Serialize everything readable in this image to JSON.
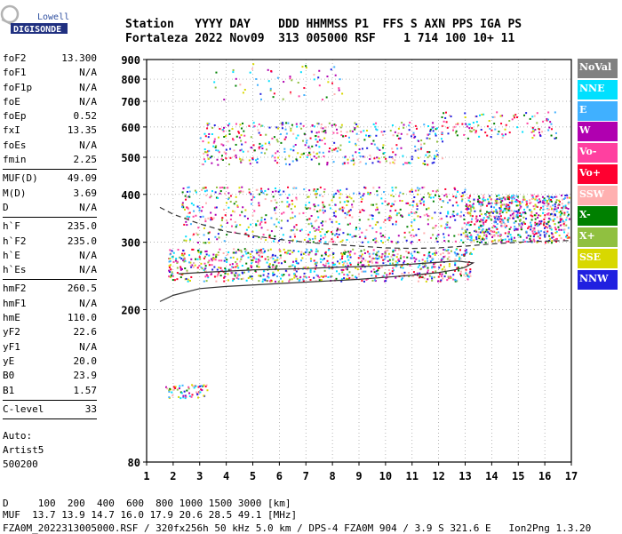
{
  "logo": {
    "line1": "Lowell",
    "line2": "DIGISONDE"
  },
  "header": {
    "row1": "Station   YYYY DAY    DDD HHMMSS P1  FFS S AXN PPS IGA PS",
    "row2": "Fortaleza 2022 Nov09  313 005000 RSF    1 714 100 10+ 11"
  },
  "params_group1": [
    {
      "name": "foF2",
      "value": "13.300"
    },
    {
      "name": "foF1",
      "value": "N/A"
    },
    {
      "name": "foF1p",
      "value": "N/A"
    },
    {
      "name": "foE",
      "value": "N/A"
    },
    {
      "name": "foEp",
      "value": "0.52"
    },
    {
      "name": "fxI",
      "value": "13.35"
    },
    {
      "name": "foEs",
      "value": "N/A"
    },
    {
      "name": "fmin",
      "value": "2.25"
    }
  ],
  "params_group2": [
    {
      "name": "MUF(D)",
      "value": "49.09"
    },
    {
      "name": "M(D)",
      "value": "3.69"
    },
    {
      "name": "D",
      "value": "N/A"
    }
  ],
  "params_group3": [
    {
      "name": "h`F",
      "value": "235.0"
    },
    {
      "name": "h`F2",
      "value": "235.0"
    },
    {
      "name": "h`E",
      "value": "N/A"
    },
    {
      "name": "h`Es",
      "value": "N/A"
    }
  ],
  "params_group4": [
    {
      "name": "hmF2",
      "value": "260.5"
    },
    {
      "name": "hmF1",
      "value": "N/A"
    },
    {
      "name": "hmE",
      "value": "110.0"
    },
    {
      "name": "yF2",
      "value": "22.6"
    },
    {
      "name": "yF1",
      "value": "N/A"
    },
    {
      "name": "yE",
      "value": "20.0"
    },
    {
      "name": "B0",
      "value": "23.9"
    },
    {
      "name": "B1",
      "value": "1.57"
    }
  ],
  "params_group5": [
    {
      "name": "C-level",
      "value": "33"
    }
  ],
  "notes": {
    "line1": "Auto:",
    "line2": "Artist5",
    "line3": "500200"
  },
  "legend": [
    {
      "label": "NoVal",
      "color": "#808080"
    },
    {
      "label": "NNE",
      "color": "#00e0ff"
    },
    {
      "label": "E",
      "color": "#40b0ff"
    },
    {
      "label": "W",
      "color": "#b000b0"
    },
    {
      "label": "Vo-",
      "color": "#ff40a0"
    },
    {
      "label": "Vo+",
      "color": "#ff0030"
    },
    {
      "label": "SSW",
      "color": "#ffb0b0"
    },
    {
      "label": "X-",
      "color": "#008000"
    },
    {
      "label": "X+",
      "color": "#90c040"
    },
    {
      "label": "SSE",
      "color": "#d8d800"
    },
    {
      "label": "NNW",
      "color": "#2020e0"
    }
  ],
  "bottom": {
    "row1": "D     100  200  400  600  800 1000 1500 3000 [km]",
    "row2": "MUF  13.7 13.9 14.7 16.0 17.9 20.6 28.5 49.1 [MHz]",
    "row3": "FZA0M_2022313005000.RSF / 320fx256h 50 kHz 5.0 km / DPS-4 FZA0M 904 / 3.9 S 321.6 E   Ion2Png 1.3.20"
  },
  "chart_data": {
    "type": "scatter",
    "xlabel": "",
    "ylabel": "",
    "xlim": [
      1,
      17
    ],
    "ylim": [
      80,
      900
    ],
    "y_scale": "log",
    "grid": true,
    "x_ticks": [
      1,
      2,
      3,
      4,
      5,
      6,
      7,
      8,
      9,
      10,
      11,
      12,
      13,
      14,
      15,
      16,
      17
    ],
    "y_ticks": [
      80,
      200,
      300,
      400,
      500,
      600,
      700,
      800,
      900
    ],
    "traces": [
      {
        "name": "O-trace profile",
        "style": "solid",
        "x": [
          1.5,
          2.0,
          3.0,
          4.0,
          5.0,
          6.0,
          7.0,
          8.0,
          9.0,
          10.0,
          11.0,
          12.0,
          12.6,
          13.0,
          13.3,
          12.7,
          12.0,
          11.0,
          10.0,
          9.0,
          8.0,
          7.0,
          6.0,
          5.0,
          4.0,
          3.0,
          2.2
        ],
        "y": [
          210,
          218,
          227,
          230,
          232,
          234,
          236,
          238,
          240,
          243,
          246,
          250,
          254,
          258,
          265,
          268,
          266,
          263,
          261,
          259,
          258,
          256,
          255,
          254,
          252,
          250,
          248
        ]
      },
      {
        "name": "X-trace profile",
        "style": "dashed",
        "x": [
          1.5,
          2.0,
          3.0,
          4.0,
          5.0,
          6.0,
          7.0,
          8.0,
          9.0,
          10.0,
          11.0,
          12.0,
          13.0,
          14.0,
          15.0,
          16.0,
          17.0
        ],
        "y": [
          370,
          355,
          335,
          320,
          312,
          305,
          300,
          296,
          293,
          290,
          289,
          290,
          293,
          297,
          300,
          302,
          303
        ]
      }
    ],
    "echo_regions": [
      {
        "x": [
          1.7,
          3.3
        ],
        "y": [
          118,
          128
        ],
        "density": 60
      },
      {
        "x": [
          1.8,
          13.3
        ],
        "y": [
          238,
          290
        ],
        "density": 900
      },
      {
        "x": [
          2.3,
          13.0
        ],
        "y": [
          300,
          420
        ],
        "density": 700
      },
      {
        "x": [
          13.0,
          16.9
        ],
        "y": [
          300,
          400
        ],
        "density": 700
      },
      {
        "x": [
          3.0,
          12.2
        ],
        "y": [
          480,
          620
        ],
        "density": 450
      },
      {
        "x": [
          12.0,
          16.5
        ],
        "y": [
          560,
          660
        ],
        "density": 120
      },
      {
        "x": [
          3.5,
          8.5
        ],
        "y": [
          700,
          880
        ],
        "density": 60
      }
    ]
  }
}
